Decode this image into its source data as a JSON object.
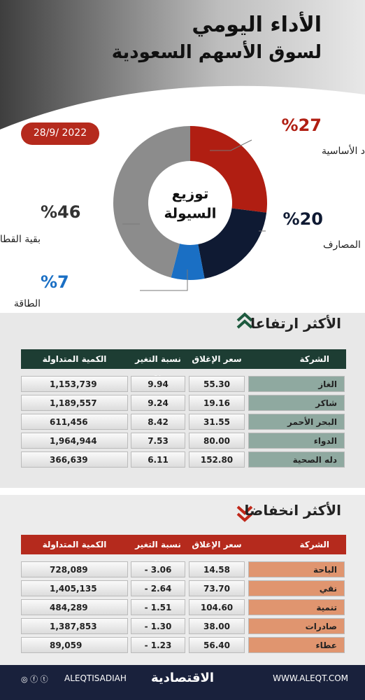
{
  "header": {
    "title": "الأداء اليومي",
    "subtitle": "لسوق الأسهم السعودية"
  },
  "date": "28/9/ 2022",
  "chart_data": {
    "type": "donut",
    "title_lines": [
      "توزيع",
      "السيولة"
    ],
    "categories": [
      "المواد الأساسية",
      "المصارف",
      "الطاقة",
      "بقية القطاعات"
    ],
    "values": [
      27,
      20,
      7,
      46
    ],
    "value_labels": [
      "%27",
      "%20",
      "%7",
      "%46"
    ],
    "colors": [
      "#b01e12",
      "#0f1a33",
      "#1a6fc4",
      "#8c8c8c"
    ]
  },
  "gainers": {
    "title": "الأكثر ارتفاعا",
    "columns": [
      "الشركة",
      "سعر الإغلاق",
      "نسبة التغير %",
      "الكمية المتداولة"
    ],
    "rows": [
      [
        "الغاز",
        "55.30",
        "9.94",
        "1,153,739"
      ],
      [
        "شاكر",
        "19.16",
        "9.24",
        "1,189,557"
      ],
      [
        "البحر الأحمر",
        "31.55",
        "8.42",
        "611,456"
      ],
      [
        "الدواء",
        "80.00",
        "7.53",
        "1,964,944"
      ],
      [
        "دله الصحية",
        "152.80",
        "6.11",
        "366,639"
      ]
    ]
  },
  "losers": {
    "title": "الأكثر انخفاضا",
    "columns": [
      "الشركة",
      "سعر الإغلاق",
      "نسبة التغير %",
      "الكمية المتداولة"
    ],
    "rows": [
      [
        "الباحة",
        "14.58",
        "- 3.06",
        "728,089"
      ],
      [
        "نقي",
        "73.70",
        "- 2.64",
        "1,405,135"
      ],
      [
        "تنمية",
        "104.60",
        "- 1.51",
        "484,289"
      ],
      [
        "صادرات",
        "38.00",
        "- 1.30",
        "1,387,853"
      ],
      [
        "عطاء",
        "56.40",
        "- 1.23",
        "89,059"
      ]
    ]
  },
  "footer": {
    "handle": "ALEQTISADIAH",
    "brand": "الاقتصادية",
    "url": "WWW.ALEQT.COM"
  }
}
